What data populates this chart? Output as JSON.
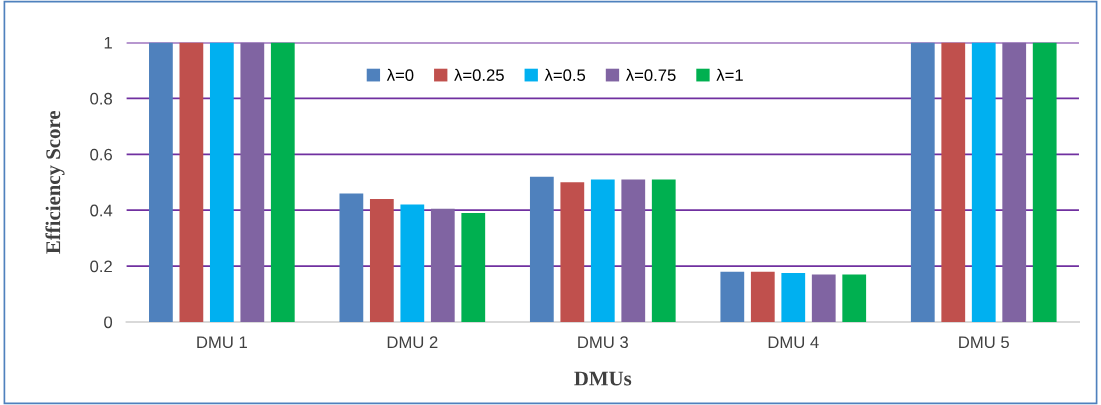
{
  "chart_data": {
    "type": "bar",
    "xlabel": "DMUs",
    "ylabel": "Efficiency Score",
    "categories": [
      "DMU 1",
      "DMU 2",
      "DMU 3",
      "DMU 4",
      "DMU 5"
    ],
    "series": [
      {
        "name": "λ=0",
        "color": "#4f81bd",
        "values": [
          1,
          0.46,
          0.52,
          0.18,
          1
        ]
      },
      {
        "name": "λ=0.25",
        "color": "#c0504d",
        "values": [
          1,
          0.44,
          0.5,
          0.18,
          1
        ]
      },
      {
        "name": "λ=0.5",
        "color": "#00b0f0",
        "values": [
          1,
          0.42,
          0.51,
          0.175,
          1
        ]
      },
      {
        "name": "λ=0.75",
        "color": "#8064a2",
        "values": [
          1,
          0.405,
          0.51,
          0.17,
          1
        ]
      },
      {
        "name": "λ=1",
        "color": "#00b050",
        "values": [
          1,
          0.39,
          0.51,
          0.17,
          1
        ]
      }
    ],
    "ylim": [
      0,
      1
    ],
    "yticks": [
      0,
      0.2,
      0.4,
      0.6,
      0.8,
      1
    ],
    "grid": "y",
    "legend": "top"
  }
}
